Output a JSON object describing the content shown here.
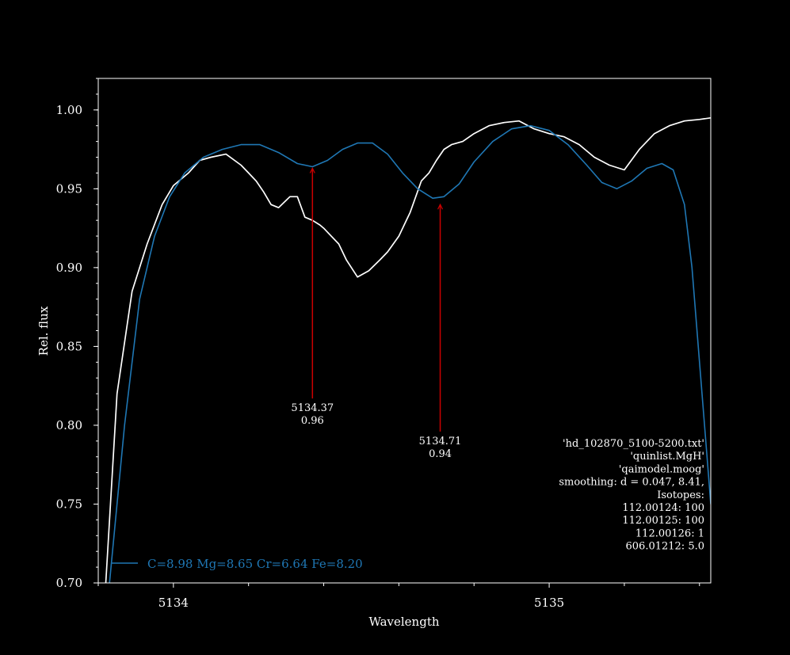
{
  "chart_data": {
    "type": "line",
    "title": "",
    "xlabel": "Wavelength",
    "ylabel": "Rel. flux",
    "xlim": [
      5133.8,
      5135.43
    ],
    "ylim": [
      0.7,
      1.02
    ],
    "x_tick_labels": [
      "5134",
      "5135"
    ],
    "x_ticks": [
      5134,
      5135
    ],
    "x_minor_ticks": [
      5133.8,
      5134.2,
      5134.4,
      5134.6,
      5134.8,
      5135.2,
      5135.4
    ],
    "y_ticks": [
      0.7,
      0.75,
      0.8,
      0.85,
      0.9,
      0.95,
      1.0
    ],
    "y_tick_labels": [
      "0.70",
      "0.75",
      "0.80",
      "0.85",
      "0.90",
      "0.95",
      "1.00"
    ],
    "y_minor_step": 0.01,
    "grid": false,
    "legend_position": "lower-left",
    "colors": {
      "background": "#000000",
      "axes": "#ffffff",
      "observed": "#ffffff",
      "model": "#1f77b4",
      "arrow": "#cc0000"
    },
    "series": [
      {
        "key": "observed",
        "color": "#ffffff",
        "x": [
          5133.82,
          5133.85,
          5133.89,
          5133.93,
          5133.97,
          5134.0,
          5134.04,
          5134.07,
          5134.1,
          5134.14,
          5134.18,
          5134.2,
          5134.22,
          5134.24,
          5134.26,
          5134.28,
          5134.31,
          5134.33,
          5134.35,
          5134.37,
          5134.39,
          5134.4,
          5134.42,
          5134.44,
          5134.46,
          5134.49,
          5134.52,
          5134.55,
          5134.57,
          5134.6,
          5134.63,
          5134.66,
          5134.68,
          5134.7,
          5134.72,
          5134.74,
          5134.77,
          5134.8,
          5134.84,
          5134.88,
          5134.92,
          5134.96,
          5135.0,
          5135.04,
          5135.08,
          5135.12,
          5135.16,
          5135.2,
          5135.24,
          5135.28,
          5135.32,
          5135.36,
          5135.4,
          5135.43
        ],
        "y": [
          0.7,
          0.82,
          0.885,
          0.915,
          0.94,
          0.952,
          0.96,
          0.968,
          0.97,
          0.972,
          0.965,
          0.96,
          0.955,
          0.948,
          0.94,
          0.938,
          0.945,
          0.945,
          0.932,
          0.93,
          0.927,
          0.925,
          0.92,
          0.915,
          0.905,
          0.894,
          0.898,
          0.905,
          0.91,
          0.92,
          0.935,
          0.955,
          0.96,
          0.968,
          0.975,
          0.978,
          0.98,
          0.985,
          0.99,
          0.992,
          0.993,
          0.988,
          0.985,
          0.983,
          0.978,
          0.97,
          0.965,
          0.962,
          0.975,
          0.985,
          0.99,
          0.993,
          0.994,
          0.995
        ]
      },
      {
        "key": "model",
        "name": "C=8.98 Mg=8.65 Cr=6.64 Fe=8.20",
        "color": "#1f77b4",
        "x": [
          5133.83,
          5133.87,
          5133.91,
          5133.95,
          5133.99,
          5134.03,
          5134.08,
          5134.13,
          5134.18,
          5134.23,
          5134.28,
          5134.33,
          5134.37,
          5134.41,
          5134.45,
          5134.49,
          5134.53,
          5134.57,
          5134.61,
          5134.65,
          5134.69,
          5134.72,
          5134.76,
          5134.8,
          5134.85,
          5134.9,
          5134.95,
          5135.0,
          5135.05,
          5135.1,
          5135.14,
          5135.18,
          5135.22,
          5135.26,
          5135.3,
          5135.33,
          5135.36,
          5135.38,
          5135.4,
          5135.42,
          5135.43
        ],
        "y": [
          0.7,
          0.8,
          0.88,
          0.92,
          0.945,
          0.96,
          0.97,
          0.975,
          0.978,
          0.978,
          0.973,
          0.966,
          0.964,
          0.968,
          0.975,
          0.979,
          0.979,
          0.972,
          0.96,
          0.95,
          0.944,
          0.945,
          0.953,
          0.967,
          0.98,
          0.988,
          0.99,
          0.987,
          0.978,
          0.965,
          0.954,
          0.95,
          0.955,
          0.963,
          0.966,
          0.962,
          0.94,
          0.9,
          0.84,
          0.78,
          0.75
        ]
      }
    ],
    "arrows": [
      {
        "x": 5134.37,
        "y_tip": 0.963,
        "y_tail": 0.817,
        "label_wl": "5134.37",
        "label_flux": "0.96"
      },
      {
        "x": 5134.71,
        "y_tip": 0.94,
        "y_tail": 0.796,
        "label_wl": "5134.71",
        "label_flux": "0.94"
      }
    ],
    "info_lines": [
      "'hd_102870_5100-5200.txt'",
      "'quinlist.MgH'",
      "'qaimodel.moog'",
      "smoothing: d = 0.047, 8.41, ",
      "Isotopes:",
      "112.00124: 100",
      "112.00125: 100",
      "112.00126: 1",
      "606.01212: 5.0"
    ]
  }
}
